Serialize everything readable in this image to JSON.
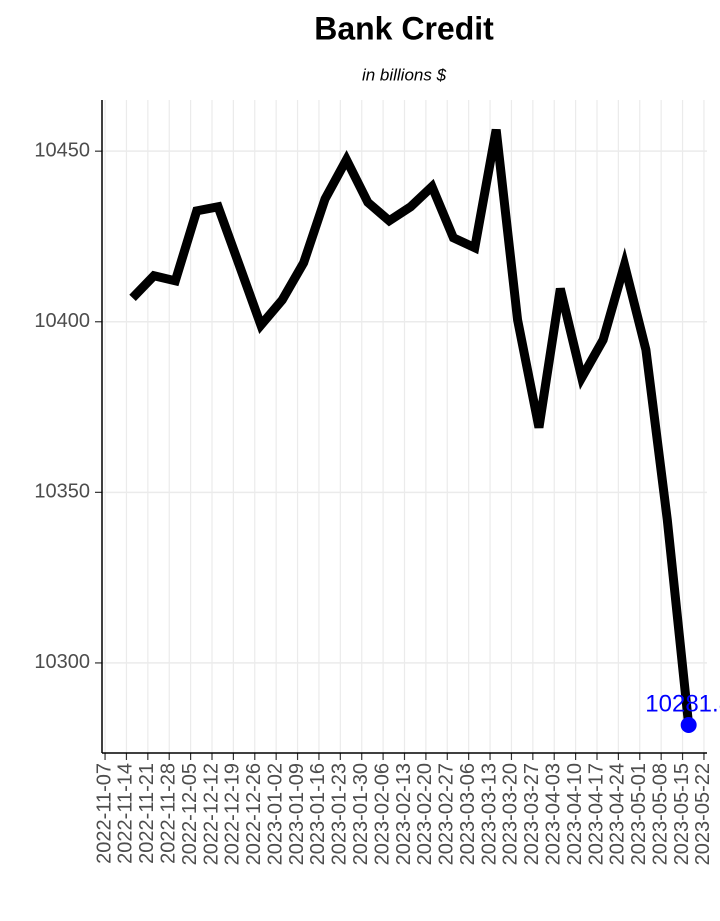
{
  "chart_data": {
    "type": "line",
    "title": "Bank Credit",
    "subtitle": "in billions $",
    "x": [
      "2022-11-16",
      "2022-11-23",
      "2022-11-30",
      "2022-12-07",
      "2022-12-14",
      "2022-12-21",
      "2022-12-28",
      "2023-01-04",
      "2023-01-11",
      "2023-01-18",
      "2023-01-25",
      "2023-02-01",
      "2023-02-08",
      "2023-02-15",
      "2023-02-22",
      "2023-03-01",
      "2023-03-08",
      "2023-03-15",
      "2023-03-22",
      "2023-03-29",
      "2023-04-05",
      "2023-04-12",
      "2023-04-19",
      "2023-04-26",
      "2023-05-03",
      "2023-05-10",
      "2023-05-17"
    ],
    "values": [
      10407,
      10413.5,
      10412,
      10432.5,
      10433.7,
      10416.4,
      10399,
      10406.4,
      10417.3,
      10436,
      10447.5,
      10435,
      10429.6,
      10433.7,
      10439.6,
      10424.6,
      10421.7,
      10456.3,
      10400.6,
      10369,
      10409.7,
      10383.6,
      10394.7,
      10416.7,
      10391.8,
      10342,
      10281.8
    ],
    "color": "#000000",
    "point_color": "#0000ff",
    "xlim": [
      "2022-11-06",
      "2023-05-23"
    ],
    "xticks": [
      "2022-11-07",
      "2022-11-14",
      "2022-11-21",
      "2022-11-28",
      "2022-12-05",
      "2022-12-12",
      "2022-12-19",
      "2022-12-26",
      "2023-01-02",
      "2023-01-09",
      "2023-01-16",
      "2023-01-23",
      "2023-01-30",
      "2023-02-06",
      "2023-02-13",
      "2023-02-20",
      "2023-02-27",
      "2023-03-06",
      "2023-03-13",
      "2023-03-20",
      "2023-03-27",
      "2023-04-03",
      "2023-04-10",
      "2023-04-17",
      "2023-04-24",
      "2023-05-01",
      "2023-05-08",
      "2023-05-15",
      "2023-05-22"
    ],
    "ylim": [
      10273.6,
      10465
    ],
    "yticks": [
      10300,
      10350,
      10400,
      10450
    ],
    "grid": true
  }
}
